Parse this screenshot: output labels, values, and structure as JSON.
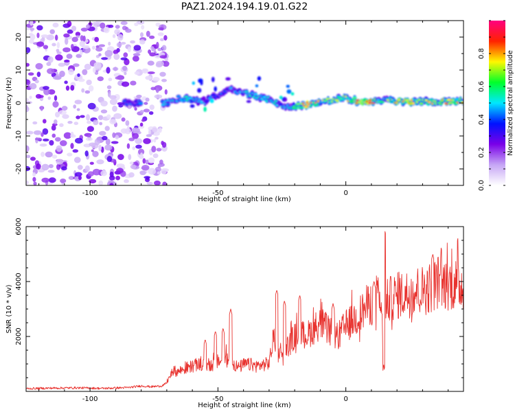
{
  "title": "PAZ1.2024.194.19.01.G22",
  "chart_data": [
    {
      "type": "heatmap",
      "xlabel": "Height of straight line (km)",
      "ylabel": "Frequency (Hz)",
      "xlim": [
        -125,
        46
      ],
      "ylim": [
        -25,
        25
      ],
      "xticks": [
        -100,
        -50,
        0
      ],
      "yticks": [
        -20,
        -10,
        0,
        10,
        20
      ],
      "grid": false,
      "colorbar": {
        "label": "Normalized spectral amplitude",
        "range": [
          0.0,
          1.0
        ],
        "ticks": [
          0.0,
          0.2,
          0.4,
          0.6,
          0.8
        ],
        "colors": [
          "#ffffff",
          "#c6a6f5",
          "#7a00e8",
          "#0012ff",
          "#00e8ff",
          "#00ff2a",
          "#fff700",
          "#ff2200",
          "#ff0080"
        ]
      },
      "features": {
        "noise_region_x": [
          -125,
          -70
        ],
        "noise_peak_amplitude": 0.3,
        "band_center_hz": [
          [
            -85,
            0
          ],
          [
            -70,
            0
          ],
          [
            -65,
            1.5
          ],
          [
            -60,
            1
          ],
          [
            -55,
            0.5
          ],
          [
            -50,
            2.5
          ],
          [
            -45,
            4
          ],
          [
            -40,
            3
          ],
          [
            -35,
            2
          ],
          [
            -30,
            1
          ],
          [
            -25,
            -1
          ],
          [
            -20,
            -1
          ],
          [
            -15,
            -0.5
          ],
          [
            -10,
            0
          ],
          [
            -5,
            1
          ],
          [
            0,
            1.5
          ],
          [
            5,
            0.5
          ],
          [
            10,
            0.5
          ],
          [
            15,
            1
          ],
          [
            20,
            0.5
          ],
          [
            25,
            0.5
          ],
          [
            30,
            0.5
          ],
          [
            35,
            0.5
          ],
          [
            40,
            0.5
          ],
          [
            46,
            0.5
          ]
        ],
        "band_peak_amplitude": [
          [
            -85,
            0.35
          ],
          [
            -70,
            0.45
          ],
          [
            -65,
            0.55
          ],
          [
            -60,
            0.5
          ],
          [
            -55,
            0.45
          ],
          [
            -50,
            0.4
          ],
          [
            -45,
            0.4
          ],
          [
            -40,
            0.45
          ],
          [
            -35,
            0.5
          ],
          [
            -30,
            0.5
          ],
          [
            -25,
            0.5
          ],
          [
            -20,
            0.6
          ],
          [
            -15,
            0.95
          ],
          [
            -10,
            0.7
          ],
          [
            -5,
            0.65
          ],
          [
            0,
            0.7
          ],
          [
            5,
            0.9
          ],
          [
            10,
            0.9
          ],
          [
            15,
            0.6
          ],
          [
            20,
            0.85
          ],
          [
            25,
            0.75
          ],
          [
            30,
            0.8
          ],
          [
            35,
            0.7
          ],
          [
            40,
            0.8
          ],
          [
            46,
            0.7
          ]
        ]
      }
    },
    {
      "type": "line",
      "xlabel": "Height of straight line (km)",
      "ylabel": "SNR (10 * v/v)",
      "xlim": [
        -125,
        46
      ],
      "ylim": [
        0,
        6000
      ],
      "xticks": [
        -100,
        -50,
        0
      ],
      "yticks": [
        2000,
        4000,
        6000
      ],
      "grid": false,
      "color": "#e8322e",
      "series": [
        {
          "x": [
            -125,
            -115,
            -105,
            -95,
            -85,
            -80,
            -76,
            -72,
            -70,
            -68,
            -66,
            -62,
            -58,
            -55,
            -52,
            -50,
            -47,
            -45,
            -42,
            -40,
            -37,
            -35,
            -32,
            -30,
            -28,
            -27,
            -25,
            -22,
            -20,
            -18,
            -15,
            -12,
            -10,
            -8,
            -5,
            -3,
            -1,
            2,
            5,
            8,
            10,
            12,
            13,
            14,
            15,
            16,
            18,
            20,
            22,
            25,
            28,
            30,
            32,
            34,
            36,
            38,
            40,
            43,
            46
          ],
          "y": [
            100,
            120,
            130,
            110,
            140,
            200,
            170,
            200,
            300,
            700,
            650,
            800,
            900,
            850,
            900,
            1000,
            1100,
            1000,
            800,
            900,
            900,
            850,
            900,
            950,
            1900,
            1500,
            1300,
            1600,
            1850,
            1900,
            1900,
            2150,
            2300,
            2150,
            1900,
            1850,
            2100,
            2350,
            2550,
            2850,
            2950,
            3000,
            3150,
            2500,
            1000,
            3000,
            3150,
            3200,
            3250,
            3300,
            3400,
            3400,
            3450,
            3550,
            3700,
            3600,
            3650,
            3600,
            3580
          ]
        }
      ],
      "spikes": [
        [
          -55,
          1900
        ],
        [
          -51,
          2200
        ],
        [
          -48,
          2300
        ],
        [
          -45,
          3000
        ],
        [
          -27,
          3700
        ],
        [
          -24,
          3300
        ],
        [
          -18,
          3500
        ],
        [
          -5,
          3200
        ],
        [
          11,
          4000
        ],
        [
          15,
          5950
        ],
        [
          34,
          5000
        ],
        [
          37,
          4300
        ]
      ]
    }
  ]
}
